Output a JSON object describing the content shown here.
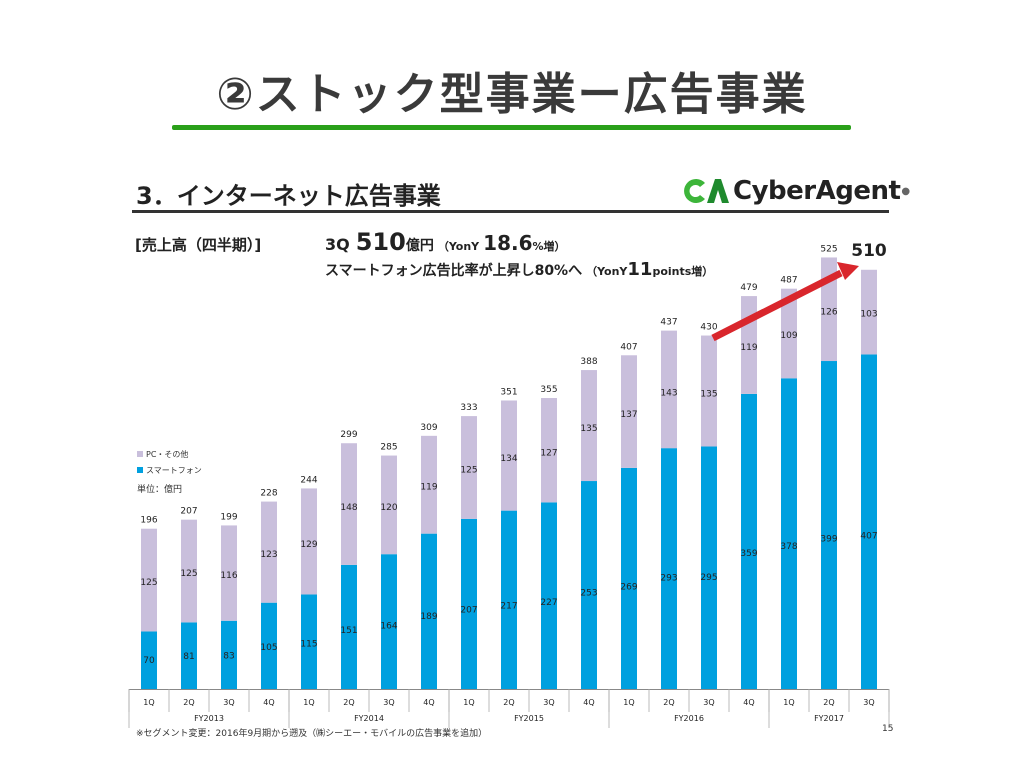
{
  "slide": {
    "title": "②ストック型事業ー広告事業",
    "section_title": "3．インターネット広告事業",
    "logo_text": "CyberAgent",
    "logo_dot": "●",
    "sub_label": "[売上高（四半期）]",
    "headline": {
      "quarter": "3Q",
      "value": "510",
      "unit": "億円",
      "yoy_prefix": "（YonY",
      "yoy_value": "18.6",
      "yoy_suffix": "%増）"
    },
    "headline2": {
      "text": "スマートフォン広告比率が上昇し80%へ",
      "yoy_prefix": "（YonY",
      "yoy_value": "11",
      "yoy_suffix": "points増）"
    },
    "unit_label": "単位：億円",
    "footnote": "※セグメント変更：2016年9月期から遡及（㈱シーエー・モバイルの広告事業を追加）",
    "page_number": "15"
  },
  "colors": {
    "pc": "#c9bfdc",
    "smartphone": "#00a0df",
    "arrow": "#d9262c",
    "underline": "#2aa01a",
    "logo_green": "#3db53a",
    "logo_dark_green": "#1f8a2e"
  },
  "chart_data": {
    "type": "bar",
    "stacked": true,
    "title": "売上高（四半期）",
    "unit": "億円",
    "categories": [
      "1Q",
      "2Q",
      "3Q",
      "4Q",
      "1Q",
      "2Q",
      "3Q",
      "4Q",
      "1Q",
      "2Q",
      "3Q",
      "4Q",
      "1Q",
      "2Q",
      "3Q",
      "4Q",
      "1Q",
      "2Q",
      "3Q"
    ],
    "groups": [
      {
        "label": "FY2013",
        "count": 4
      },
      {
        "label": "FY2014",
        "count": 4
      },
      {
        "label": "FY2015",
        "count": 4
      },
      {
        "label": "FY2016",
        "count": 4
      },
      {
        "label": "FY2017",
        "count": 3
      }
    ],
    "series": [
      {
        "name": "スマートフォン",
        "values": [
          70,
          81,
          83,
          105,
          115,
          151,
          164,
          189,
          207,
          217,
          227,
          253,
          269,
          293,
          295,
          359,
          378,
          399,
          407
        ]
      },
      {
        "name": "PC・その他",
        "values": [
          125,
          125,
          116,
          123,
          129,
          148,
          120,
          119,
          125,
          134,
          127,
          135,
          137,
          143,
          135,
          119,
          109,
          126,
          103
        ]
      }
    ],
    "totals": [
      196,
      207,
      199,
      228,
      244,
      299,
      285,
      309,
      333,
      351,
      355,
      388,
      407,
      437,
      430,
      479,
      487,
      525,
      510
    ],
    "legend": [
      "PC・その他",
      "スマートフォン"
    ],
    "legend_position": "left",
    "ylim": [
      0,
      540
    ],
    "grid": false,
    "annotation": "arrow from FY2016 3Q to FY2017 3Q"
  }
}
